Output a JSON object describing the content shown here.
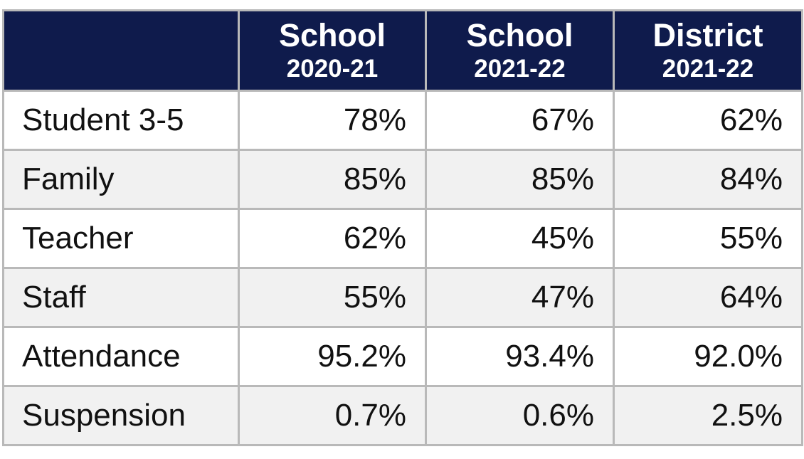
{
  "header": {
    "columns": [
      {
        "title": "School",
        "period": "2020-21"
      },
      {
        "title": "School",
        "period": "2021-22"
      },
      {
        "title": "District",
        "period": "2021-22"
      }
    ]
  },
  "rows": [
    {
      "label": "Student 3-5",
      "values": [
        "78%",
        "67%",
        "62%"
      ]
    },
    {
      "label": "Family",
      "values": [
        "85%",
        "85%",
        "84%"
      ]
    },
    {
      "label": "Teacher",
      "values": [
        "62%",
        "45%",
        "55%"
      ]
    },
    {
      "label": "Staff",
      "values": [
        "55%",
        "47%",
        "64%"
      ]
    },
    {
      "label": "Attendance",
      "values": [
        "95.2%",
        "93.4%",
        "92.0%"
      ]
    },
    {
      "label": "Suspension",
      "values": [
        "0.7%",
        "0.6%",
        "2.5%"
      ]
    }
  ]
}
